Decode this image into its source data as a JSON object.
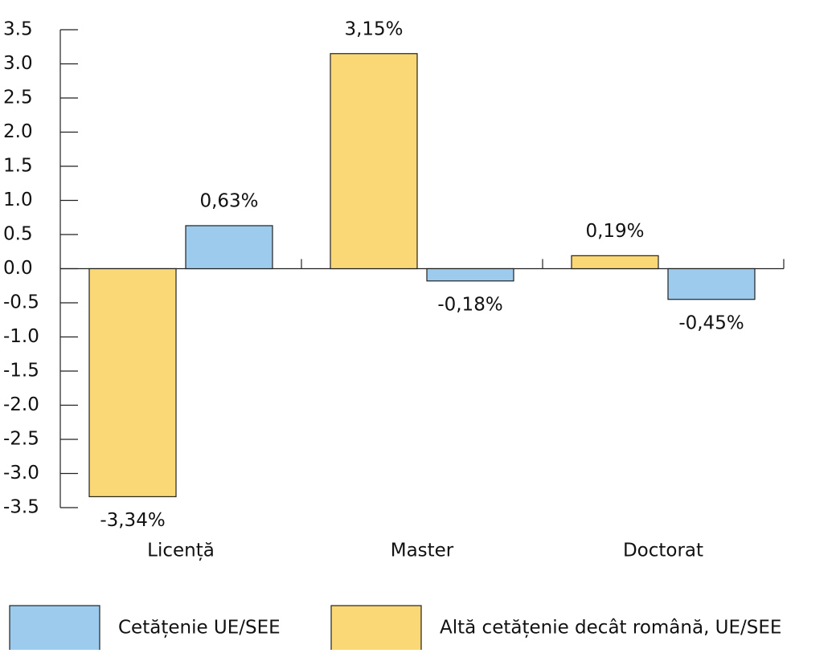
{
  "chart_data": {
    "type": "bar",
    "categories": [
      "Licență",
      "Master",
      "Doctorat"
    ],
    "series": [
      {
        "name": "Cetățenie UE/SEE",
        "color": "#9ccbee",
        "values": [
          0.63,
          -0.18,
          -0.45
        ],
        "value_labels": [
          "0,63%",
          "-0,18%",
          "-0,45%"
        ]
      },
      {
        "name": "Altă cetățenie decât română, UE/SEE",
        "color": "#fad876",
        "values": [
          -3.34,
          3.15,
          0.19
        ],
        "value_labels": [
          "-3,34%",
          "3,15%",
          "0,19%"
        ]
      }
    ],
    "ylim": [
      -3.5,
      3.5
    ],
    "yticks": [
      -3.5,
      {
        "value": -3,
        "label": "-3.0"
      },
      -2.5,
      {
        "value": -2,
        "label": "-2.0"
      },
      -1.5,
      {
        "value": -1,
        "label": "-1.0"
      },
      -0.5,
      {
        "value": 0,
        "label": "0.0"
      },
      0.5,
      {
        "value": 1,
        "label": "1.0"
      },
      1.5,
      {
        "value": 2,
        "label": "2.0"
      },
      2.5,
      {
        "value": 3,
        "label": "3.0"
      },
      3.5
    ]
  }
}
